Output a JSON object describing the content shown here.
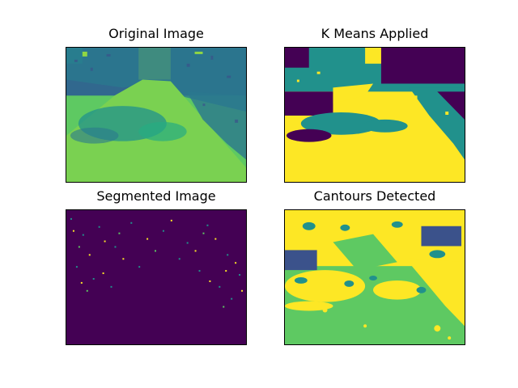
{
  "figure": {
    "panels": [
      {
        "title": "Original Image"
      },
      {
        "title": "K Means Applied"
      },
      {
        "title": "Segmented Image"
      },
      {
        "title": "Cantours Detected"
      }
    ]
  },
  "colors": {
    "viridis_dark": "#440154",
    "viridis_blue": "#31688e",
    "viridis_teal": "#21918c",
    "viridis_green": "#35b779",
    "viridis_lightgreen": "#90d743",
    "viridis_yellow": "#fde725"
  }
}
